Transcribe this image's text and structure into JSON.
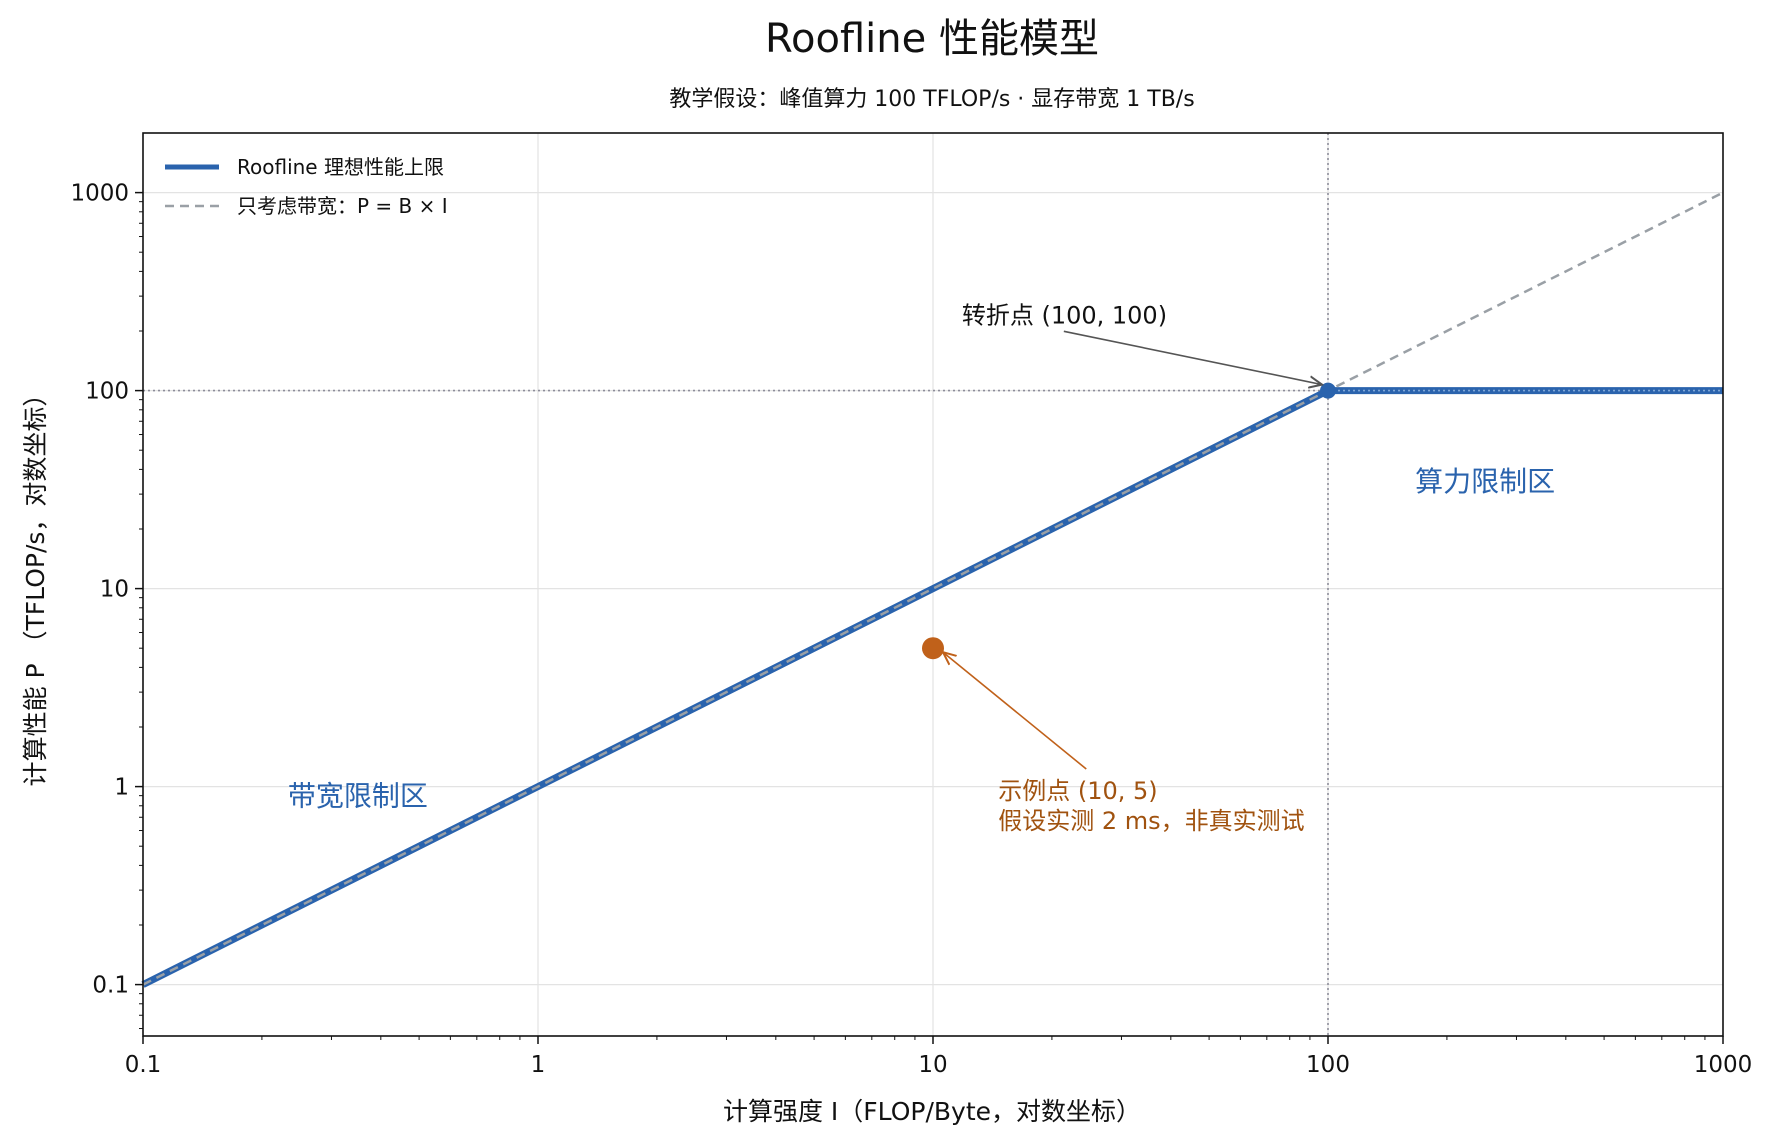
{
  "chart_data": {
    "type": "line",
    "title": "Roofline 性能模型",
    "subtitle": "教学假设：峰值算力 100 TFLOP/s · 显存带宽 1 TB/s",
    "xlabel": "计算强度 I（FLOP/Byte，对数坐标）",
    "ylabel": "计算性能 P （TFLOP/s，对数坐标）",
    "xscale": "log",
    "yscale": "log",
    "xlim": [
      0.1,
      1000
    ],
    "ylim": [
      0.055,
      2000
    ],
    "x_ticks": [
      0.1,
      1,
      10,
      100,
      1000
    ],
    "x_tick_labels": [
      "0.1",
      "1",
      "10",
      "100",
      "1000"
    ],
    "y_ticks": [
      0.1,
      1,
      10,
      100,
      1000
    ],
    "y_tick_labels": [
      "0.1",
      "1",
      "10",
      "100",
      "1000"
    ],
    "grid": true,
    "legend": {
      "position": "top-left",
      "entries": [
        "Roofline 理想性能上限",
        "只考虑带宽：P = B × I"
      ]
    },
    "series": [
      {
        "name": "Roofline 理想性能上限",
        "style": "solid",
        "color": "#2a63ad",
        "x": [
          0.1,
          100,
          1000
        ],
        "y": [
          0.1,
          100,
          100
        ]
      },
      {
        "name": "只考虑带宽：P = B × I",
        "style": "dashed",
        "color": "#9aa0a6",
        "x": [
          0.1,
          1000
        ],
        "y": [
          0.1,
          1000
        ]
      }
    ],
    "reference_lines": [
      {
        "orientation": "horizontal",
        "value": 100,
        "style": "dotted",
        "color": "#8c8c99"
      },
      {
        "orientation": "vertical",
        "value": 100,
        "style": "dotted",
        "color": "#8c8c99"
      }
    ],
    "points": [
      {
        "x": 100,
        "y": 100,
        "color": "#2a63ad"
      },
      {
        "x": 10,
        "y": 5,
        "color": "#c0611a"
      }
    ],
    "annotations": [
      {
        "text": "转折点 (100, 100)",
        "target": [
          100,
          100
        ],
        "text_at": [
          18,
          240
        ],
        "color": "#111111",
        "arrow_color": "#555555"
      },
      {
        "text": "示例点 (10, 5)",
        "text2": "假设实测 2 ms，非真实测试",
        "target": [
          10,
          5
        ],
        "text_at": [
          22,
          0.95
        ],
        "color": "#a0520f",
        "arrow_color": "#c0611a"
      }
    ],
    "region_labels": [
      {
        "text": "带宽限制区",
        "at": [
          0.35,
          0.9
        ],
        "color": "#2a63ad"
      },
      {
        "text": "算力限制区",
        "at": [
          250,
          35
        ],
        "color": "#2a63ad"
      }
    ]
  }
}
